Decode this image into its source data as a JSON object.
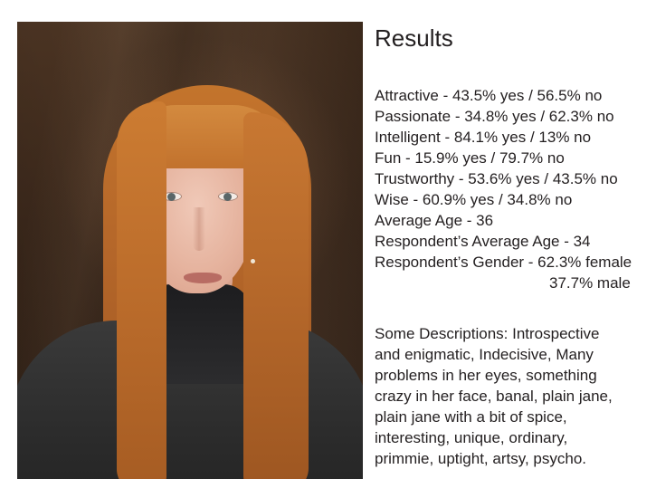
{
  "photo": {
    "subject": "portrait-photo"
  },
  "title": "Results",
  "results": [
    "Attractive - 43.5% yes / 56.5% no",
    "Passionate - 34.8% yes / 62.3% no",
    "Intelligent - 84.1% yes / 13% no",
    "Fun - 15.9% yes / 79.7% no",
    "Trustworthy - 53.6% yes / 43.5% no",
    "Wise - 60.9% yes / 34.8% no",
    "Average Age - 36",
    "Respondent’s Average Age - 34",
    "Respondent’s Gender - 62.3% female",
    "37.7% male"
  ],
  "descriptions": [
    "Some Descriptions:  Introspective",
    "and enigmatic, Indecisive, Many",
    "problems in her eyes, something",
    "crazy in her face, banal, plain jane,",
    "plain jane with a bit of spice,",
    "interesting, unique, ordinary,",
    "primmie, uptight, artsy, psycho."
  ]
}
